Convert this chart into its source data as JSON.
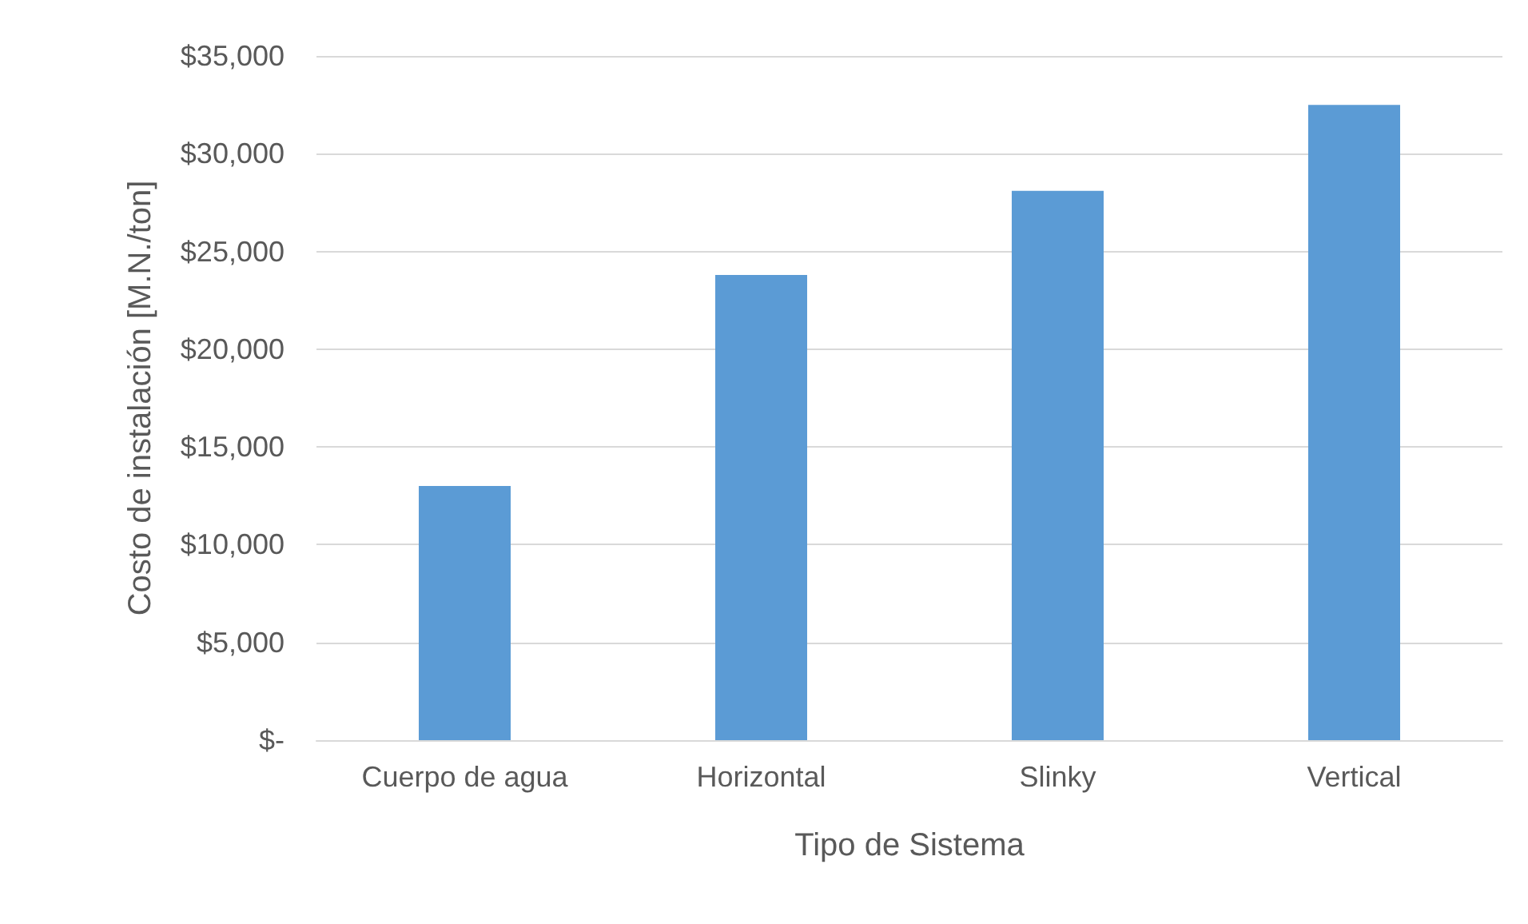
{
  "chart_data": {
    "type": "bar",
    "xlabel": "Tipo de Sistema",
    "ylabel": "Costo de instalación [M.N./ton]",
    "categories": [
      "Cuerpo de agua",
      "Horizontal",
      "Slinky",
      "Vertical"
    ],
    "values": [
      13000,
      23800,
      28100,
      32500
    ],
    "color": "#5b9bd5",
    "ylim": [
      0,
      35000
    ],
    "yticks": [
      {
        "value": 0,
        "label": "$-"
      },
      {
        "value": 5000,
        "label": "$5,000"
      },
      {
        "value": 10000,
        "label": "$10,000"
      },
      {
        "value": 15000,
        "label": "$15,000"
      },
      {
        "value": 20000,
        "label": "$20,000"
      },
      {
        "value": 25000,
        "label": "$25,000"
      },
      {
        "value": 30000,
        "label": "$30,000"
      },
      {
        "value": 35000,
        "label": "$35,000"
      }
    ],
    "grid": true
  }
}
